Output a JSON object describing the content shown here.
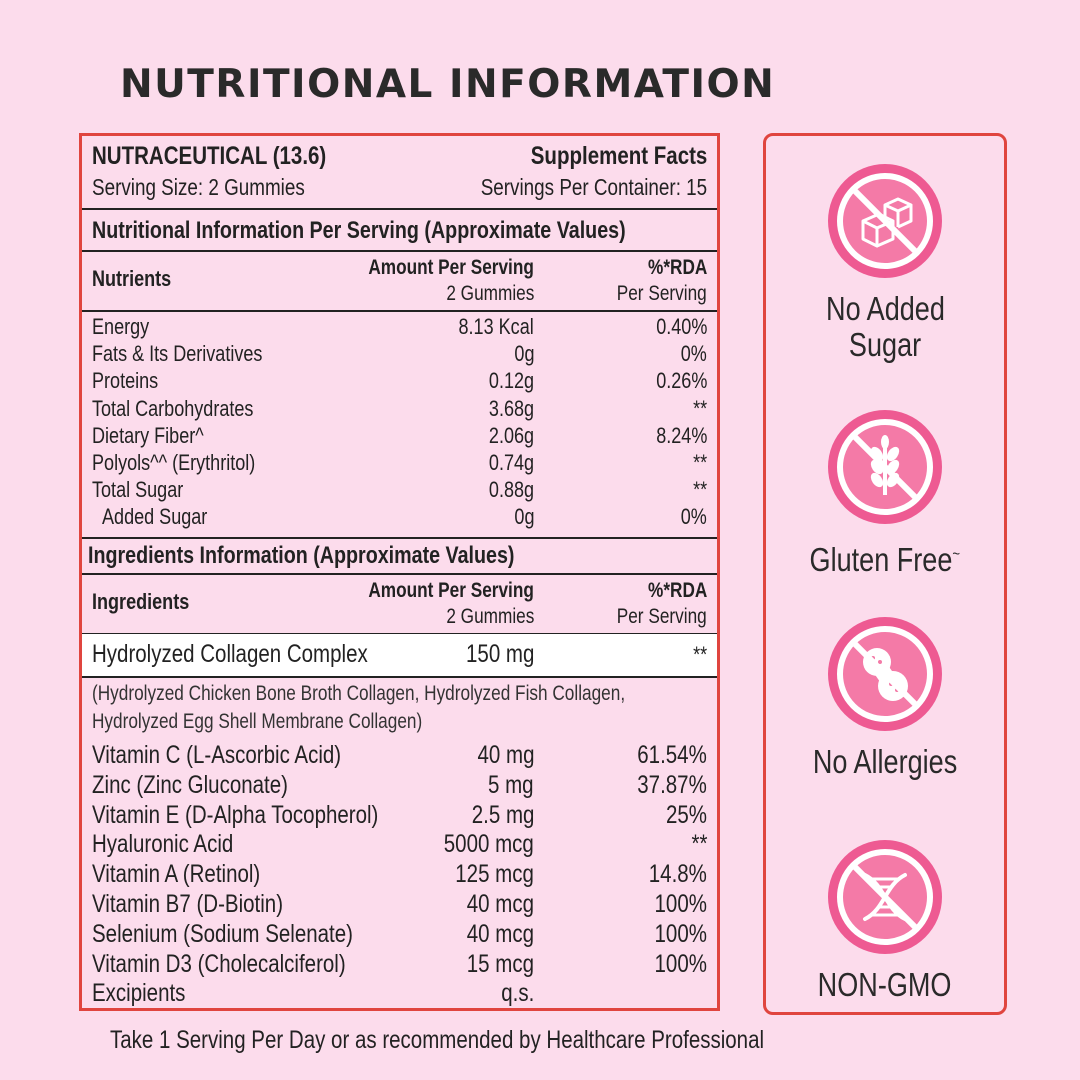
{
  "title": "NUTRITIONAL INFORMATION",
  "header": {
    "product": "NUTRACEUTICAL (13.6)",
    "facts": "Supplement Facts",
    "serving_size": "Serving Size: 2 Gummies",
    "servings_per_container": "Servings Per Container: 15"
  },
  "nutrition": {
    "section_title": "Nutritional Information Per Serving (Approximate Values)",
    "col_name": "Nutrients",
    "col_amount": "Amount Per Serving",
    "col_amount_sub": "2 Gummies",
    "col_rda": "%*RDA",
    "col_rda_sub": "Per Serving",
    "rows": [
      {
        "name": "Energy",
        "amount": "8.13 Kcal",
        "rda": "0.40%"
      },
      {
        "name": "Fats & Its Derivatives",
        "amount": "0g",
        "rda": "0%"
      },
      {
        "name": "Proteins",
        "amount": "0.12g",
        "rda": "0.26%"
      },
      {
        "name": "Total Carbohydrates",
        "amount": "3.68g",
        "rda": "**"
      },
      {
        "name": "Dietary Fiber^",
        "amount": "2.06g",
        "rda": "8.24%"
      },
      {
        "name": "Polyols^^ (Erythritol)",
        "amount": "0.74g",
        "rda": "**"
      },
      {
        "name": "Total Sugar",
        "amount": "0.88g",
        "rda": "**"
      },
      {
        "name": "Added Sugar",
        "amount": "0g",
        "rda": "0%"
      }
    ]
  },
  "ingredients": {
    "section_title": "Ingredients Information (Approximate Values)",
    "col_name": "Ingredients",
    "col_amount": "Amount Per Serving",
    "col_amount_sub": "2 Gummies",
    "col_rda": "%*RDA",
    "col_rda_sub": "Per Serving",
    "collagen": {
      "name": "Hydrolyzed Collagen Complex",
      "amount": "150 mg",
      "rda": "**"
    },
    "collagen_note_1": "(Hydrolyzed Chicken Bone Broth Collagen, Hydrolyzed Fish Collagen,",
    "collagen_note_2": "Hydrolyzed Egg Shell Membrane Collagen)",
    "rows": [
      {
        "name": "Vitamin C (L-Ascorbic Acid)",
        "amount": "40 mg",
        "rda": "61.54%"
      },
      {
        "name": "Zinc (Zinc Gluconate)",
        "amount": "5 mg",
        "rda": "37.87%"
      },
      {
        "name": "Vitamin E (D-Alpha Tocopherol)",
        "amount": "2.5 mg",
        "rda": "25%"
      },
      {
        "name": "Hyaluronic Acid",
        "amount": "5000 mcg",
        "rda": "**"
      },
      {
        "name": "Vitamin A (Retinol)",
        "amount": "125 mcg",
        "rda": "14.8%"
      },
      {
        "name": "Vitamin B7 (D-Biotin)",
        "amount": "40 mcg",
        "rda": "100%"
      },
      {
        "name": "Selenium (Sodium Selenate)",
        "amount": "40 mcg",
        "rda": "100%"
      },
      {
        "name": "Vitamin D3 (Cholecalciferol)",
        "amount": "15 mcg",
        "rda": "100%"
      },
      {
        "name": "Excipients",
        "amount": "q.s.",
        "rda": ""
      }
    ]
  },
  "badges": [
    {
      "icon": "no-sugar-cubes-icon",
      "line1": "No Added",
      "line2": "Sugar"
    },
    {
      "icon": "no-wheat-icon",
      "line1": "Gluten Free",
      "mark": "~"
    },
    {
      "icon": "no-peanut-icon",
      "line1": "No Allergies"
    },
    {
      "icon": "no-dna-icon",
      "line1": "NON-GMO"
    }
  ],
  "footer": "Take 1 Serving Per Day or as recommended by Healthcare Professional",
  "colors": {
    "background": "#fcdcec",
    "accent": "#e0453f",
    "badge_pink": "#ee5a92",
    "badge_inner": "#f47aa7"
  }
}
